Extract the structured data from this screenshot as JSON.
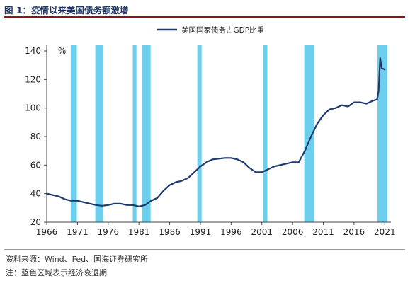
{
  "figure": {
    "title": "图 1：疫情以来美国债务额激增",
    "source": "资料来源：Wind、Fed、国海证券研究所",
    "note": "注：蓝色区域表示经济衰退期"
  },
  "colors": {
    "line": "#1f3a6e",
    "recession": "#6ccfee",
    "title_rule": "#8c1515"
  },
  "chart_data": {
    "type": "line",
    "title": "",
    "xlabel": "",
    "ylabel": "%",
    "xlim": [
      1966,
      2022
    ],
    "ylim": [
      20,
      140
    ],
    "yticks": [
      20,
      40,
      60,
      80,
      100,
      120,
      140
    ],
    "xticks": [
      1966,
      1971,
      1976,
      1981,
      1986,
      1991,
      1996,
      2001,
      2006,
      2011,
      2016,
      2021
    ],
    "grid": false,
    "legend": "top-center",
    "series": [
      {
        "name": "美国国家债务占GDP比重",
        "x": [
          1966,
          1967,
          1968,
          1969,
          1970,
          1971,
          1972,
          1973,
          1974,
          1975,
          1976,
          1977,
          1978,
          1979,
          1980,
          1981,
          1982,
          1983,
          1984,
          1985,
          1986,
          1987,
          1988,
          1989,
          1990,
          1991,
          1992,
          1993,
          1994,
          1995,
          1996,
          1997,
          1998,
          1999,
          2000,
          2001,
          2002,
          2003,
          2004,
          2005,
          2006,
          2007,
          2008,
          2009,
          2010,
          2011,
          2012,
          2013,
          2014,
          2015,
          2016,
          2017,
          2018,
          2019,
          2019.75,
          2020,
          2020.25,
          2020.5,
          2021
        ],
        "values": [
          40,
          39,
          38,
          36,
          35,
          35,
          34,
          33,
          32,
          31.5,
          32,
          33,
          33,
          32,
          32,
          31,
          32,
          35,
          37,
          42,
          46,
          48,
          49,
          51,
          55,
          59,
          62,
          64,
          64.5,
          65,
          65,
          64,
          62,
          58,
          55,
          55,
          57,
          59,
          60,
          61,
          62,
          62,
          70,
          80,
          89,
          95,
          99,
          100,
          102,
          101,
          104,
          104,
          103,
          105,
          106,
          112,
          135,
          128,
          127
        ]
      }
    ],
    "recessions": [
      [
        1969.9,
        1970.9
      ],
      [
        1973.9,
        1975.2
      ],
      [
        1980.0,
        1980.6
      ],
      [
        1981.5,
        1982.9
      ],
      [
        1990.5,
        1991.2
      ],
      [
        2001.2,
        2001.9
      ],
      [
        2007.9,
        2009.5
      ],
      [
        2019.8,
        2021.4
      ]
    ]
  }
}
